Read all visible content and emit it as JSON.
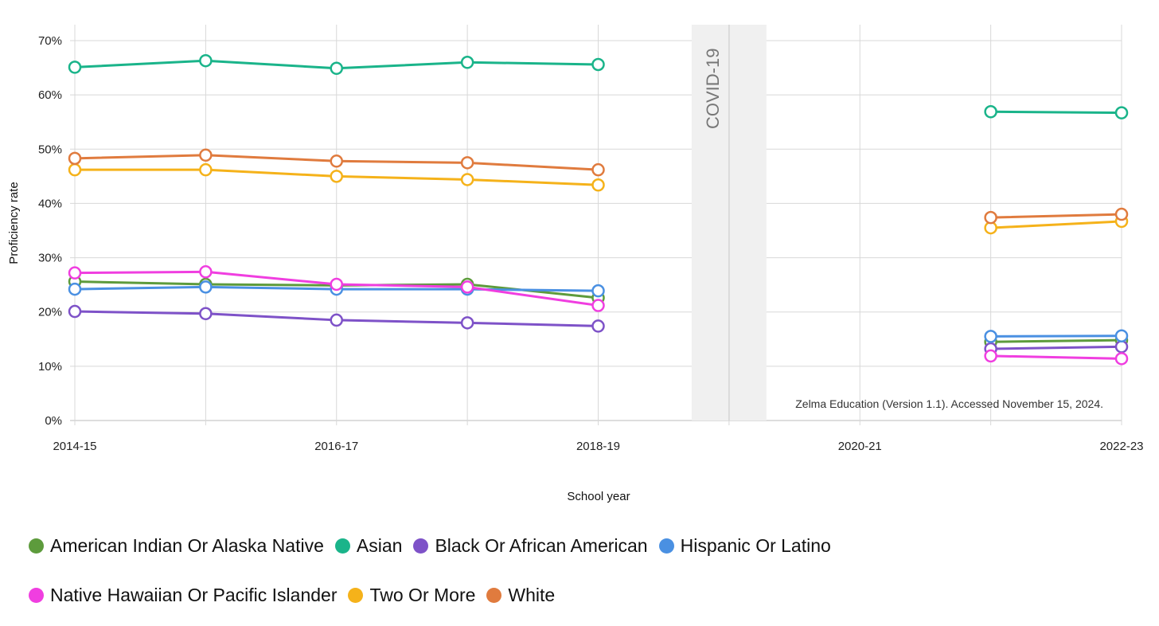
{
  "chart_data": {
    "type": "line",
    "xlabel": "School year",
    "ylabel": "Proficiency rate",
    "x": [
      "2014-15",
      "2015-16",
      "2016-17",
      "2017-18",
      "2018-19",
      "2019-20",
      "2020-21",
      "2021-22",
      "2022-23"
    ],
    "x_tick_labels": [
      "2014-15",
      "2016-17",
      "2018-19",
      "2020-21",
      "2022-23"
    ],
    "y_ticks": [
      "0%",
      "10%",
      "20%",
      "30%",
      "40%",
      "50%",
      "60%",
      "70%"
    ],
    "ylim": [
      0,
      73
    ],
    "grid": true,
    "annotation_band": {
      "label": "COVID-19",
      "x": "2019-20"
    },
    "source_note": "Zelma Education (Version 1.1). Accessed November 15, 2024.",
    "legend_position": "bottom",
    "series": [
      {
        "name": "American Indian Or Alaska Native",
        "color": "#5d9b3c",
        "values": [
          25.6,
          25.1,
          24.9,
          25.1,
          22.6,
          null,
          null,
          14.5,
          14.8
        ]
      },
      {
        "name": "Asian",
        "color": "#1ab48a",
        "values": [
          65.1,
          66.3,
          64.9,
          66.0,
          65.6,
          null,
          null,
          56.9,
          56.7
        ]
      },
      {
        "name": "Black Or African American",
        "color": "#7e52c8",
        "values": [
          20.1,
          19.7,
          18.5,
          18.0,
          17.4,
          null,
          null,
          13.2,
          13.6
        ]
      },
      {
        "name": "Hispanic Or Latino",
        "color": "#4a90e2",
        "values": [
          24.2,
          24.6,
          24.2,
          24.2,
          23.9,
          null,
          null,
          15.5,
          15.6
        ]
      },
      {
        "name": "Native Hawaiian Or Pacific Islander",
        "color": "#f03ee0",
        "values": [
          27.2,
          27.4,
          25.1,
          24.6,
          21.2,
          null,
          null,
          11.9,
          11.4
        ]
      },
      {
        "name": "Two Or More",
        "color": "#f5b21a",
        "values": [
          46.2,
          46.2,
          45.0,
          44.4,
          43.4,
          null,
          null,
          35.5,
          36.7
        ]
      },
      {
        "name": "White",
        "color": "#e07b3e",
        "values": [
          48.3,
          48.9,
          47.8,
          47.5,
          46.2,
          null,
          null,
          37.4,
          38.0
        ]
      }
    ]
  }
}
